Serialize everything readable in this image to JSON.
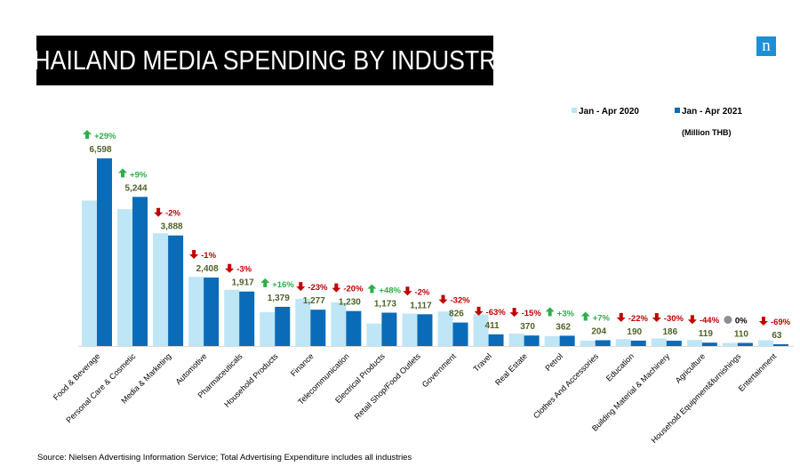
{
  "title": "THAILAND  MEDIA SPENDING BY INDUSTRY",
  "logo_letter": "n",
  "unit_note": "(Million THB)",
  "source": "Source: Nielsen Advertising Information Service; Total Advertising Expenditure includes all industries",
  "colors": {
    "series_2020": "#bfe6f6",
    "series_2021": "#0a6bb8",
    "up": "#2eae4a",
    "down": "#c00000",
    "flat": "#8d8d93",
    "value_label": "#4f6228"
  },
  "chart_data": {
    "type": "bar",
    "categories": [
      "Food & Beverage",
      "Personal Care & Cosmetic",
      "Media & Marketing",
      "Automotive",
      "Pharmaceuticals",
      "Household Products",
      "Finance",
      "Telecommunication",
      "Electrical Products",
      "Retail Shop/Food Outlets",
      "Government",
      "Travel",
      "Real Estate",
      "Petrol",
      "Clothes And Accessories",
      "Education",
      "Building Material & Machinery",
      "Agriculture",
      "Household Equipment&furnishings",
      "Entertainment"
    ],
    "series": [
      {
        "name": "Jan - Apr 2020",
        "values": [
          5115,
          4811,
          3967,
          2432,
          1976,
          1189,
          1658,
          1538,
          793,
          1140,
          1215,
          1111,
          435,
          351,
          191,
          244,
          266,
          213,
          110,
          203
        ]
      },
      {
        "name": "Jan - Apr 2021",
        "values": [
          6598,
          5244,
          3888,
          2408,
          1917,
          1379,
          1277,
          1230,
          1173,
          1117,
          826,
          411,
          370,
          362,
          204,
          190,
          186,
          119,
          110,
          63
        ]
      }
    ],
    "value_labels": [
      "6,598",
      "5,244",
      "3,888",
      "2,408",
      "1,917",
      "1,379",
      "1,277",
      "1,230",
      "1,173",
      "1,117",
      "826",
      "411",
      "370",
      "362",
      "204",
      "190",
      "186",
      "119",
      "110",
      "63"
    ],
    "changes": [
      {
        "text": "+29%",
        "dir": "up"
      },
      {
        "text": "+9%",
        "dir": "up"
      },
      {
        "text": "-2%",
        "dir": "down"
      },
      {
        "text": "-1%",
        "dir": "down"
      },
      {
        "text": "-3%",
        "dir": "down"
      },
      {
        "text": "+16%",
        "dir": "up"
      },
      {
        "text": "-23%",
        "dir": "down"
      },
      {
        "text": "-20%",
        "dir": "down"
      },
      {
        "text": "+48%",
        "dir": "up"
      },
      {
        "text": "-2%",
        "dir": "down"
      },
      {
        "text": "-32%",
        "dir": "down"
      },
      {
        "text": "-63%",
        "dir": "down"
      },
      {
        "text": "-15%",
        "dir": "down"
      },
      {
        "text": "+3%",
        "dir": "up"
      },
      {
        "text": "+7%",
        "dir": "up"
      },
      {
        "text": "-22%",
        "dir": "down"
      },
      {
        "text": "-30%",
        "dir": "down"
      },
      {
        "text": "-44%",
        "dir": "down"
      },
      {
        "text": "0%",
        "dir": "flat"
      },
      {
        "text": "-69%",
        "dir": "down"
      }
    ],
    "legend_position": "top-right",
    "ylim": [
      0,
      6600
    ],
    "grid": false
  }
}
